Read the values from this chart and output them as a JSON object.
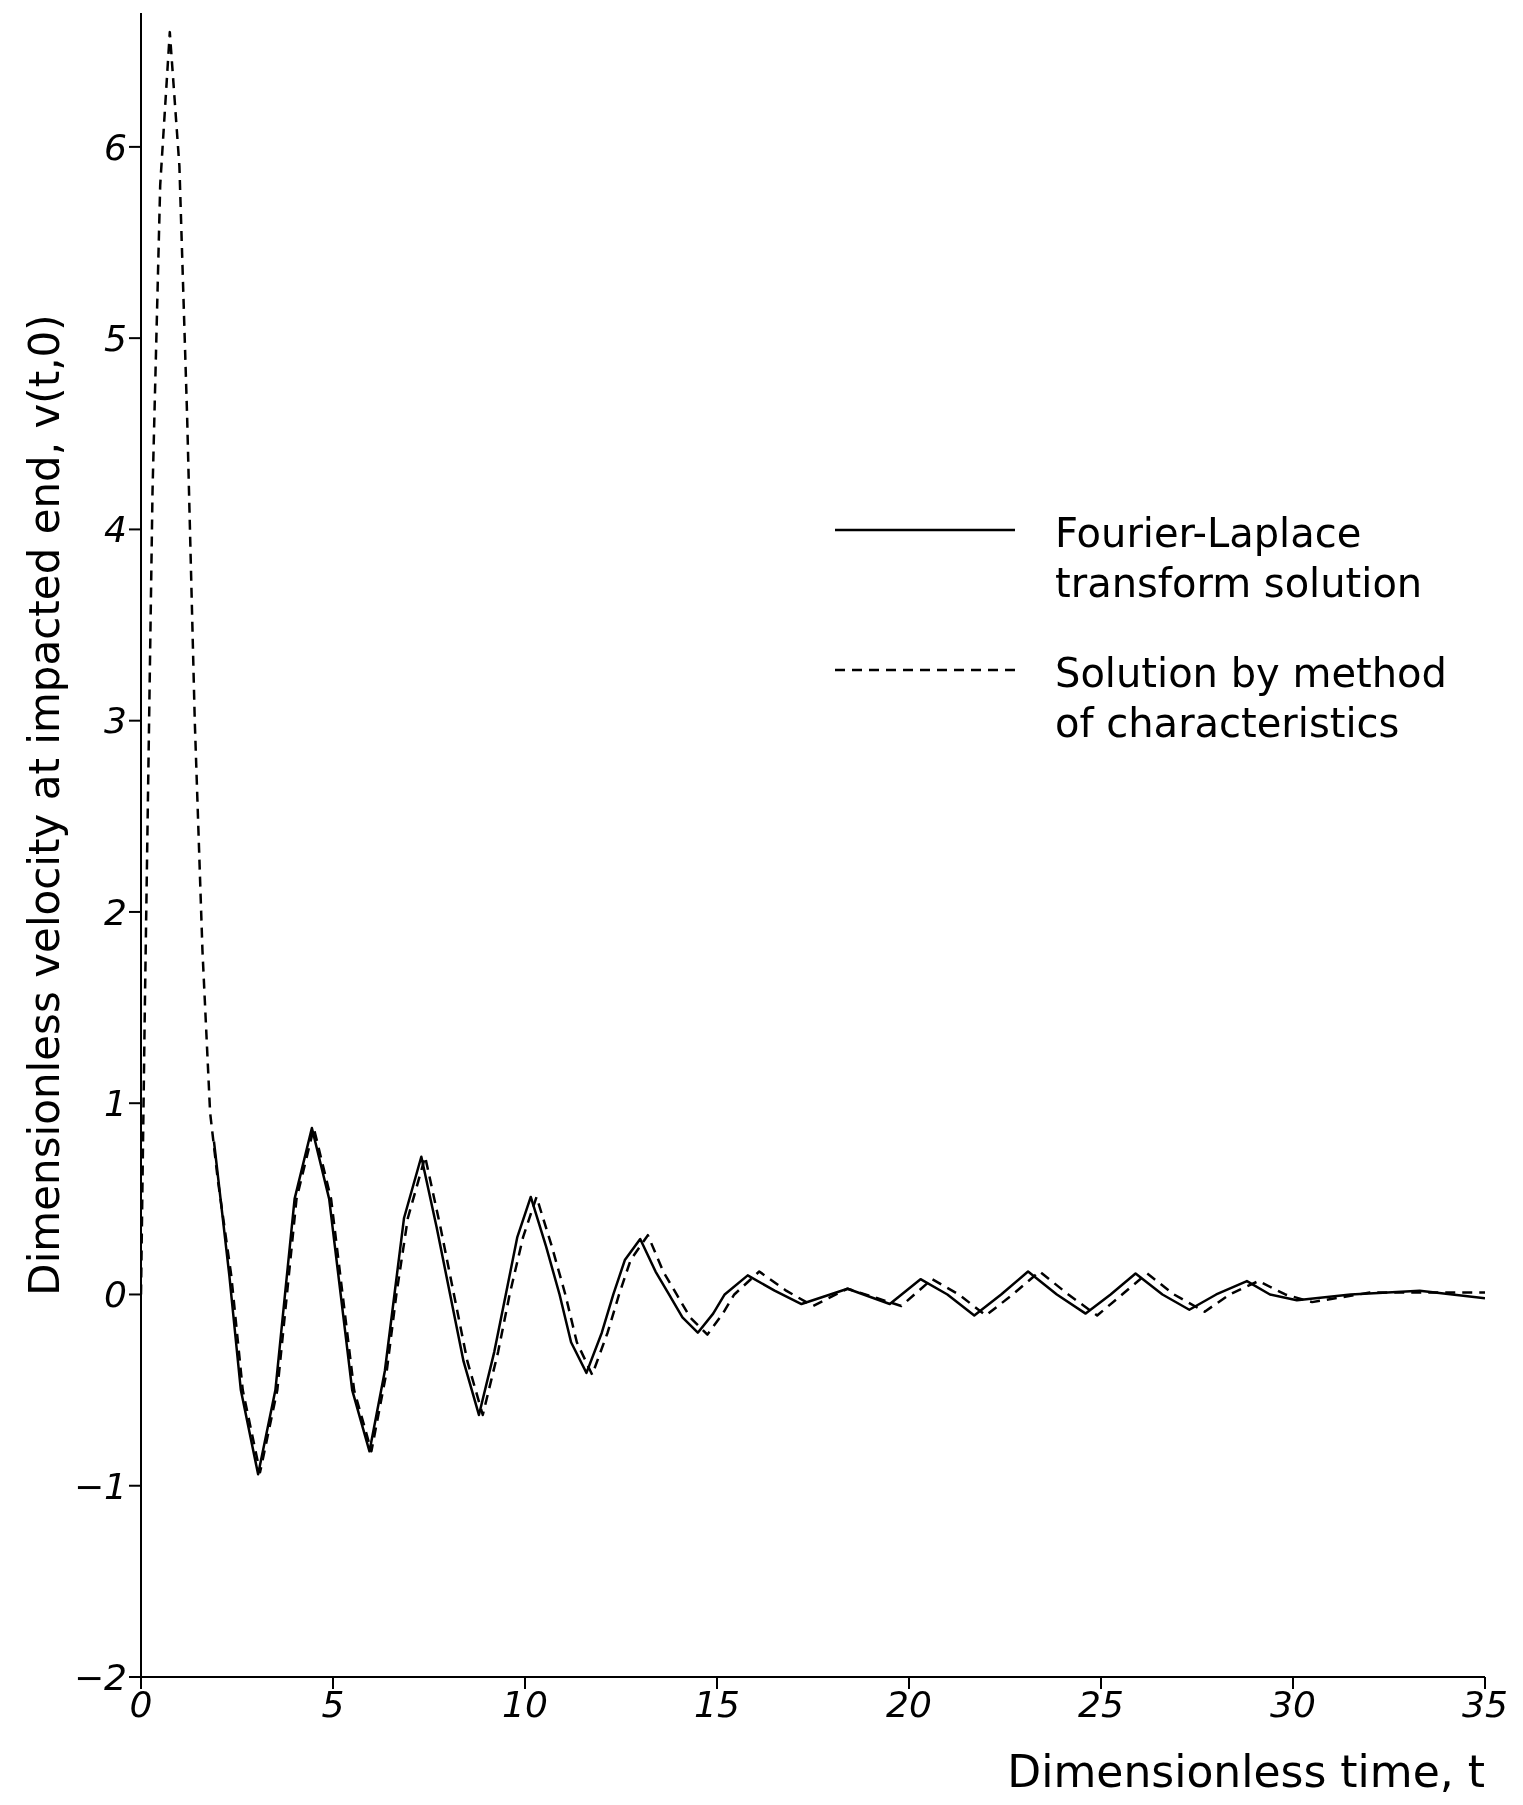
{
  "chart_data": {
    "type": "line",
    "xlabel": "Dimensionless time, t",
    "ylabel": "Dimensionless velocity at impacted end, v(t,0)",
    "xlim": [
      0,
      35
    ],
    "xticks": [
      0,
      5,
      10,
      15,
      20,
      25,
      30,
      35
    ],
    "ylim": [
      -2,
      6.7
    ],
    "yticks": [
      -2,
      -1,
      0,
      1,
      2,
      3,
      4,
      5,
      6
    ],
    "grid": false,
    "legend": "top right",
    "marker": "none",
    "series": [
      {
        "name": "Fourier-Laplace transform solution",
        "color": "#000000",
        "line_style": "solid",
        "x": [
          1.9,
          2.3,
          2.6,
          3.05,
          3.5,
          3.75,
          4.0,
          4.45,
          4.9,
          5.2,
          5.5,
          5.95,
          6.35,
          6.6,
          6.85,
          7.3,
          7.7,
          8.05,
          8.4,
          8.8,
          9.2,
          9.5,
          9.8,
          10.15,
          10.55,
          10.9,
          11.2,
          11.6,
          12.0,
          12.3,
          12.6,
          13.0,
          13.4,
          13.75,
          14.1,
          14.5,
          14.9,
          15.2,
          15.8,
          16.5,
          17.2,
          18.4,
          19.5,
          20.3,
          21.0,
          21.7,
          22.4,
          23.1,
          23.85,
          24.6,
          25.25,
          25.9,
          26.6,
          27.3,
          28.0,
          28.8,
          29.4,
          30.1,
          31.5,
          33.3,
          35
        ],
        "values": [
          0.8,
          0.1,
          -0.5,
          -0.94,
          -0.5,
          0,
          0.5,
          0.87,
          0.5,
          0,
          -0.5,
          -0.82,
          -0.4,
          0,
          0.4,
          0.72,
          0.35,
          0,
          -0.35,
          -0.63,
          -0.3,
          0,
          0.3,
          0.51,
          0.25,
          0,
          -0.25,
          -0.41,
          -0.2,
          0,
          0.18,
          0.29,
          0.12,
          0,
          -0.12,
          -0.2,
          -0.1,
          0,
          0.1,
          0.02,
          -0.05,
          0.03,
          -0.05,
          0.08,
          0,
          -0.11,
          0,
          0.12,
          0,
          -0.1,
          0,
          0.11,
          0,
          -0.08,
          0,
          0.07,
          0,
          -0.03,
          0,
          0.02,
          -0.02
        ]
      },
      {
        "name": "Solution by method of characteristics",
        "color": "#000000",
        "line_style": "dashed",
        "x": [
          0,
          0.1,
          0.3,
          0.5,
          0.75,
          1.0,
          1.2,
          1.4,
          1.6,
          1.8,
          2.0,
          2.35,
          2.65,
          3.1,
          3.55,
          3.8,
          4.05,
          4.5,
          4.95,
          5.25,
          5.55,
          6.0,
          6.4,
          6.65,
          6.95,
          7.4,
          7.8,
          8.15,
          8.5,
          8.9,
          9.3,
          9.6,
          9.95,
          10.3,
          10.7,
          11.05,
          11.35,
          11.75,
          12.15,
          12.45,
          12.75,
          13.2,
          13.6,
          13.95,
          14.3,
          14.75,
          15.15,
          15.45,
          16.1,
          16.8,
          17.5,
          18.4,
          19.8,
          20.6,
          21.3,
          22.0,
          22.7,
          23.4,
          24.15,
          24.9,
          25.55,
          26.2,
          26.9,
          27.7,
          28.35,
          29.1,
          29.8,
          30.5,
          32.0,
          33.8,
          35
        ],
        "values": [
          0,
          1.5,
          4.2,
          5.8,
          6.6,
          5.9,
          4.6,
          3.0,
          1.8,
          0.95,
          0.6,
          0.1,
          -0.5,
          -0.93,
          -0.5,
          0,
          0.5,
          0.87,
          0.5,
          0,
          -0.5,
          -0.82,
          -0.4,
          0,
          0.4,
          0.72,
          0.35,
          0,
          -0.35,
          -0.63,
          -0.3,
          0,
          0.3,
          0.51,
          0.25,
          0,
          -0.25,
          -0.42,
          -0.2,
          0,
          0.18,
          0.31,
          0.12,
          0,
          -0.12,
          -0.21,
          -0.1,
          0,
          0.12,
          0.02,
          -0.06,
          0.03,
          -0.06,
          0.08,
          0,
          -0.11,
          0,
          0.12,
          0,
          -0.11,
          0,
          0.11,
          0,
          -0.09,
          0,
          0.07,
          0,
          -0.04,
          0.01,
          0.01,
          0.01
        ]
      }
    ]
  }
}
